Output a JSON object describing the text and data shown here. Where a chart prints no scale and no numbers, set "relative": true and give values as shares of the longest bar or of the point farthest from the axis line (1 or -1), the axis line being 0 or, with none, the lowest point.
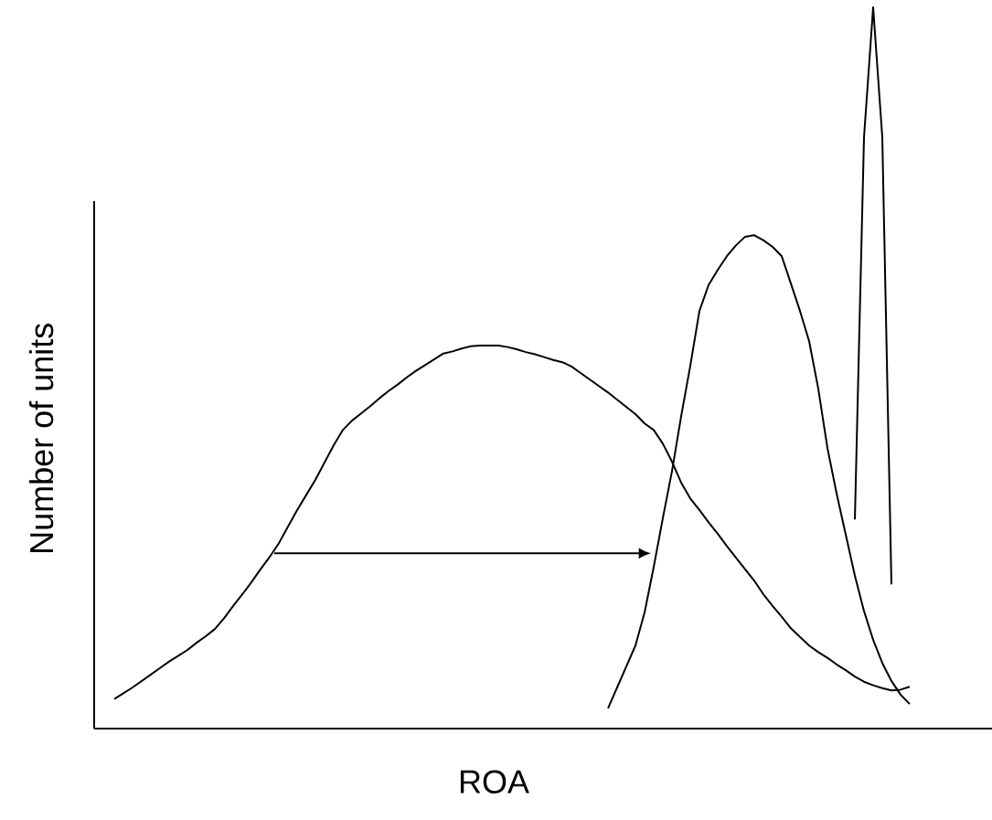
{
  "chart_data": {
    "type": "line",
    "relative": true,
    "xlabel": "ROA",
    "ylabel": "Number of units",
    "categories": [
      null,
      null,
      null,
      null,
      null,
      null,
      null,
      null,
      null,
      null,
      null,
      null,
      null,
      null,
      null,
      null,
      null,
      null,
      null,
      null,
      null,
      null,
      null,
      null,
      null,
      null,
      null,
      null,
      null,
      null,
      null,
      null,
      null,
      null,
      null,
      null,
      null,
      null,
      null,
      null,
      null,
      null,
      null,
      null,
      null,
      null,
      null,
      null,
      null,
      null,
      null,
      null,
      null,
      null,
      null,
      null,
      null,
      null,
      null,
      null,
      null,
      null,
      null,
      null,
      null,
      null,
      null,
      null,
      null,
      null,
      null,
      null,
      null,
      null,
      null,
      null,
      null,
      null,
      null,
      null,
      null,
      null,
      null,
      null,
      null,
      null,
      null,
      null,
      null
    ],
    "series": [
      {
        "color": "#000000",
        "values": [
          0.041,
          0.049,
          0.057,
          0.066,
          0.075,
          0.084,
          0.093,
          0.101,
          0.109,
          0.119,
          0.128,
          0.138,
          0.153,
          0.17,
          0.186,
          0.203,
          0.221,
          0.238,
          0.257,
          0.28,
          0.303,
          0.324,
          0.345,
          0.369,
          0.393,
          0.414,
          0.427,
          0.437,
          0.447,
          0.458,
          0.468,
          0.477,
          0.487,
          0.496,
          0.504,
          0.512,
          0.52,
          0.523,
          0.527,
          0.53,
          0.531,
          0.531,
          0.531,
          0.529,
          0.526,
          0.522,
          0.519,
          0.515,
          0.511,
          0.508,
          0.502,
          0.493,
          0.484,
          0.475,
          0.466,
          0.456,
          0.446,
          0.436,
          0.423,
          0.414,
          0.395,
          0.37,
          0.341,
          0.319,
          0.303,
          0.286,
          0.27,
          0.253,
          0.237,
          0.221,
          0.205,
          0.186,
          0.17,
          0.155,
          0.139,
          0.127,
          0.115,
          0.106,
          0.098,
          0.089,
          0.081,
          0.072,
          0.065,
          0.06,
          0.056,
          0.053,
          0.054,
          0.058,
          null
        ]
      },
      {
        "color": "#000000",
        "values": [
          null,
          null,
          null,
          null,
          null,
          null,
          null,
          null,
          null,
          null,
          null,
          null,
          null,
          null,
          null,
          null,
          null,
          null,
          null,
          null,
          null,
          null,
          null,
          null,
          null,
          null,
          null,
          null,
          null,
          null,
          null,
          null,
          null,
          null,
          null,
          null,
          null,
          null,
          null,
          null,
          null,
          null,
          null,
          null,
          null,
          null,
          null,
          null,
          null,
          null,
          null,
          null,
          null,
          null,
          0.028,
          0.057,
          0.086,
          0.115,
          0.161,
          0.224,
          0.292,
          0.357,
          0.433,
          0.503,
          0.579,
          0.615,
          0.636,
          0.655,
          0.67,
          0.682,
          0.684,
          0.677,
          0.668,
          0.655,
          0.617,
          0.579,
          0.537,
          0.471,
          0.389,
          0.326,
          0.269,
          0.212,
          0.163,
          0.123,
          0.091,
          0.066,
          0.047,
          0.034,
          null
        ]
      },
      {
        "color": "#000000",
        "values": [
          null,
          null,
          null,
          null,
          null,
          null,
          null,
          null,
          null,
          null,
          null,
          null,
          null,
          null,
          null,
          null,
          null,
          null,
          null,
          null,
          null,
          null,
          null,
          null,
          null,
          null,
          null,
          null,
          null,
          null,
          null,
          null,
          null,
          null,
          null,
          null,
          null,
          null,
          null,
          null,
          null,
          null,
          null,
          null,
          null,
          null,
          null,
          null,
          null,
          null,
          null,
          null,
          null,
          null,
          null,
          null,
          null,
          null,
          null,
          null,
          null,
          null,
          null,
          null,
          null,
          null,
          null,
          null,
          null,
          null,
          null,
          null,
          null,
          null,
          null,
          null,
          null,
          null,
          null,
          null,
          null,
          0.29,
          0.82,
          1,
          0.82,
          0.2,
          null,
          null,
          null
        ]
      }
    ]
  }
}
